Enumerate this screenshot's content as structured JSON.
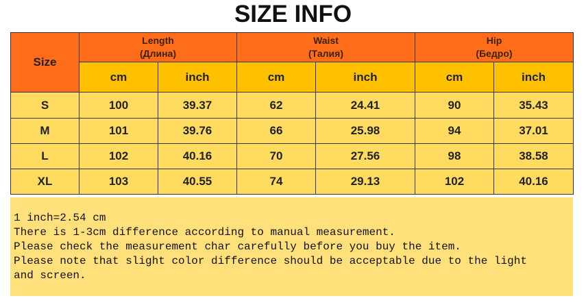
{
  "title": "SIZE INFO",
  "table": {
    "size_header": "Size",
    "groups": [
      {
        "label": "Length",
        "sub": "(Длина)"
      },
      {
        "label": "Waist",
        "sub": "(Талия)"
      },
      {
        "label": "Hip",
        "sub": "(Бедро)"
      }
    ],
    "units": [
      "cm",
      "inch",
      "cm",
      "inch",
      "cm",
      "inch"
    ],
    "rows": [
      [
        "S",
        "100",
        "39.37",
        "62",
        "24.41",
        "90",
        "35.43"
      ],
      [
        "M",
        "101",
        "39.76",
        "66",
        "25.98",
        "94",
        "37.01"
      ],
      [
        "L",
        "102",
        "40.16",
        "70",
        "27.56",
        "98",
        "38.58"
      ],
      [
        "XL",
        "103",
        "40.55",
        "74",
        "29.13",
        "102",
        "40.16"
      ]
    ]
  },
  "notes": [
    "1 inch=2.54 cm",
    "There is 1-3cm difference according to manual measurement.",
    "Please check the measurement char carefully before you buy the item.",
    "Please note that slight color difference should be acceptable due to the light",
    "and screen."
  ]
}
